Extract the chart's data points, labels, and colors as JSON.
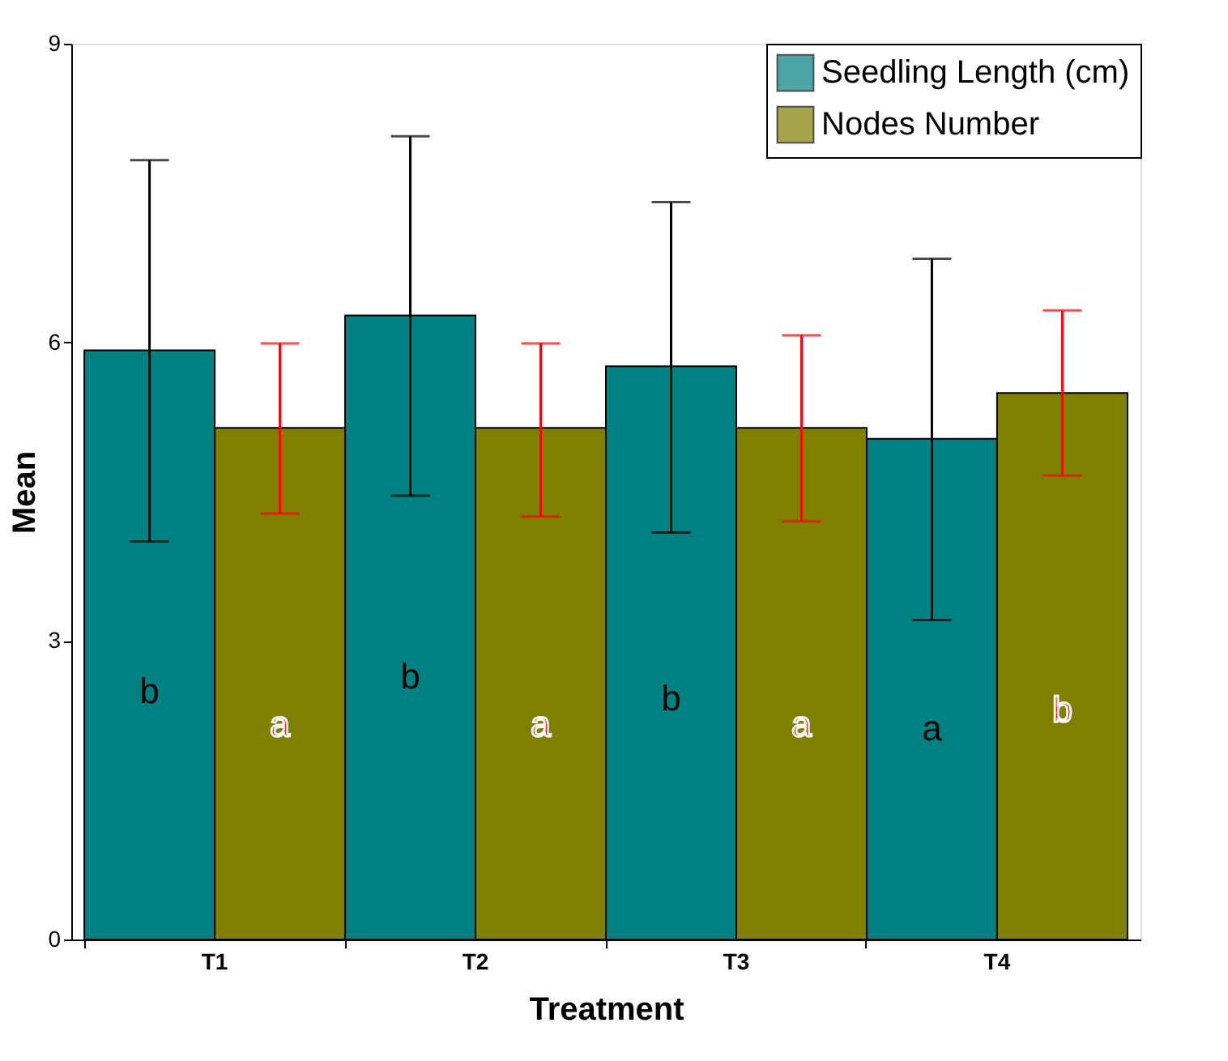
{
  "chart_data": {
    "type": "bar",
    "xlabel": "Treatment",
    "ylabel": "Mean",
    "categories": [
      "T1",
      "T2",
      "T3",
      "T4"
    ],
    "series": [
      {
        "name": "Seedling Length (cm)",
        "color": "#008080",
        "values": [
          5.92,
          6.27,
          5.76,
          5.03
        ],
        "errors": [
          [
            4.0,
            7.83
          ],
          [
            4.46,
            8.07
          ],
          [
            4.09,
            7.41
          ],
          [
            3.21,
            6.84
          ]
        ],
        "value_labels": [
          "b",
          "b",
          "b",
          "a"
        ]
      },
      {
        "name": "Nodes Number",
        "color": "#808000",
        "values": [
          5.14,
          5.14,
          5.14,
          5.49
        ],
        "errors": [
          [
            4.28,
            5.99
          ],
          [
            4.25,
            5.99
          ],
          [
            4.2,
            6.07
          ],
          [
            4.66,
            6.32
          ]
        ],
        "value_labels": [
          "a",
          "a",
          "a",
          "b"
        ]
      }
    ],
    "ylim": [
      0,
      9
    ],
    "yticks": [
      {
        "value": 0,
        "label": "0"
      },
      {
        "value": 3,
        "label": "3"
      },
      {
        "value": 6,
        "label": "6"
      },
      {
        "value": 9,
        "label": "9"
      }
    ],
    "grid": false,
    "legend": "top right"
  }
}
